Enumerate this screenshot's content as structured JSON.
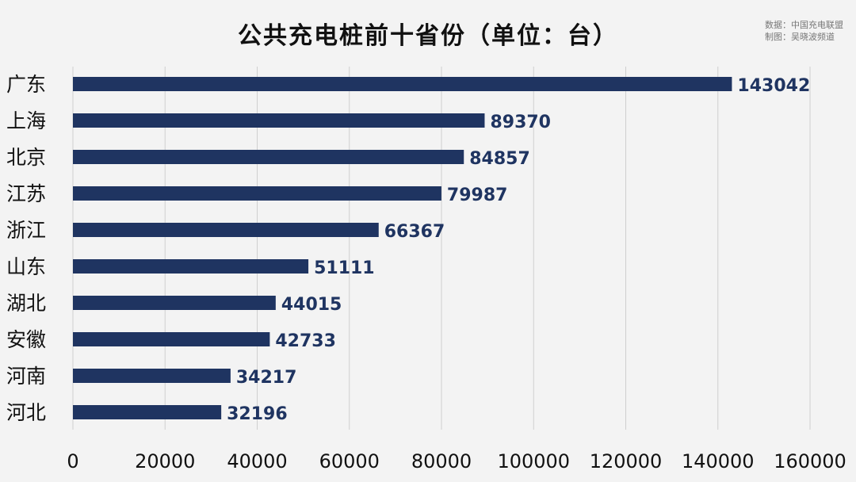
{
  "chart_data": {
    "type": "bar",
    "orientation": "horizontal",
    "title": "公共充电桩前十省份（单位：台）",
    "categories": [
      "广东",
      "上海",
      "北京",
      "江苏",
      "浙江",
      "山东",
      "湖北",
      "安徽",
      "河南",
      "河北"
    ],
    "values": [
      143042,
      89370,
      84857,
      79987,
      66367,
      51111,
      44015,
      42733,
      34217,
      32196
    ],
    "xlim": [
      0,
      160000
    ],
    "xticks": [
      0,
      20000,
      40000,
      60000,
      80000,
      100000,
      120000,
      140000,
      160000
    ],
    "grid": "vertical",
    "legend": "none",
    "bar_color": "#1f3461",
    "label_color": "#1f3461"
  },
  "source": {
    "line1": "数据：中国充电联盟",
    "line2": "制图：吴晓波频道"
  }
}
